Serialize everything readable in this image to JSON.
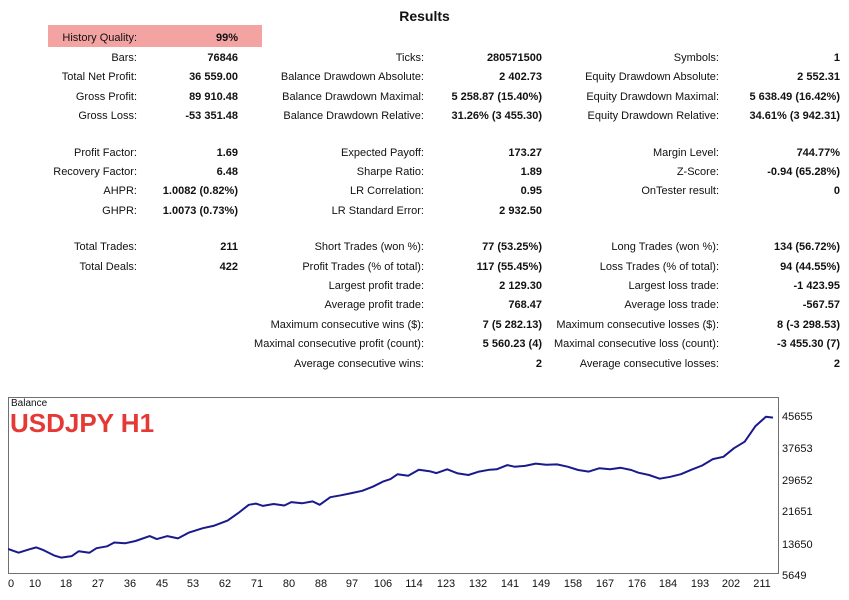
{
  "title": "Results",
  "history_quality": {
    "label": "History Quality:",
    "value": "99%"
  },
  "col1": [
    {
      "label": "Bars:",
      "value": "76846"
    },
    {
      "label": "Total Net Profit:",
      "value": "36 559.00"
    },
    {
      "label": "Gross Profit:",
      "value": "89 910.48"
    },
    {
      "label": "Gross Loss:",
      "value": "-53 351.48"
    },
    {
      "label": "Profit Factor:",
      "value": "1.69"
    },
    {
      "label": "Recovery Factor:",
      "value": "6.48"
    },
    {
      "label": "AHPR:",
      "value": "1.0082 (0.82%)"
    },
    {
      "label": "GHPR:",
      "value": "1.0073 (0.73%)"
    },
    {
      "label": "Total Trades:",
      "value": "211"
    },
    {
      "label": "Total Deals:",
      "value": "422"
    }
  ],
  "col2": [
    {
      "label": "Ticks:",
      "value": "280571500"
    },
    {
      "label": "Balance Drawdown Absolute:",
      "value": "2 402.73"
    },
    {
      "label": "Balance Drawdown Maximal:",
      "value": "5 258.87 (15.40%)"
    },
    {
      "label": "Balance Drawdown Relative:",
      "value": "31.26% (3 455.30)"
    },
    {
      "label": "Expected Payoff:",
      "value": "173.27"
    },
    {
      "label": "Sharpe Ratio:",
      "value": "1.89"
    },
    {
      "label": "LR Correlation:",
      "value": "0.95"
    },
    {
      "label": "LR Standard Error:",
      "value": "2 932.50"
    },
    {
      "label": "Short Trades (won %):",
      "value": "77 (53.25%)"
    },
    {
      "label": "Profit Trades (% of total):",
      "value": "117 (55.45%)"
    },
    {
      "label": "Largest profit trade:",
      "value": "2 129.30"
    },
    {
      "label": "Average profit trade:",
      "value": "768.47"
    },
    {
      "label": "Maximum consecutive wins ($):",
      "value": "7 (5 282.13)"
    },
    {
      "label": "Maximal consecutive profit (count):",
      "value": "5 560.23 (4)"
    },
    {
      "label": "Average consecutive wins:",
      "value": "2"
    }
  ],
  "col3": [
    {
      "label": "Symbols:",
      "value": "1"
    },
    {
      "label": "Equity Drawdown Absolute:",
      "value": "2 552.31"
    },
    {
      "label": "Equity Drawdown Maximal:",
      "value": "5 638.49 (16.42%)"
    },
    {
      "label": "Equity Drawdown Relative:",
      "value": "34.61% (3 942.31)"
    },
    {
      "label": "Margin Level:",
      "value": "744.77%"
    },
    {
      "label": "Z-Score:",
      "value": "-0.94 (65.28%)"
    },
    {
      "label": "OnTester result:",
      "value": "0"
    },
    {
      "label": "Long Trades (won %):",
      "value": "134 (56.72%)"
    },
    {
      "label": "Loss Trades (% of total):",
      "value": "94 (44.55%)"
    },
    {
      "label": "Largest loss trade:",
      "value": "-1 423.95"
    },
    {
      "label": "Average loss trade:",
      "value": "-567.57"
    },
    {
      "label": "Maximum consecutive losses ($):",
      "value": "8 (-3 298.53)"
    },
    {
      "label": "Maximal consecutive loss (count):",
      "value": "-3 455.30 (7)"
    },
    {
      "label": "Average consecutive losses:",
      "value": "2"
    }
  ],
  "chart_data": {
    "type": "line",
    "label": "Balance",
    "subtitle": "USDJPY H1",
    "x_ticks": [
      "0",
      "10",
      "18",
      "27",
      "36",
      "45",
      "53",
      "62",
      "71",
      "80",
      "88",
      "97",
      "106",
      "114",
      "123",
      "132",
      "141",
      "149",
      "158",
      "167",
      "176",
      "184",
      "193",
      "202",
      "211"
    ],
    "y_ticks": [
      "45655",
      "37653",
      "29652",
      "21651",
      "13650",
      "5649"
    ],
    "ylim": [
      5649,
      45655
    ],
    "xlim": [
      0,
      216
    ],
    "line_color": "#1a1a8c",
    "series": [
      {
        "x": [
          0,
          3,
          6,
          8,
          10,
          13,
          15,
          18,
          20,
          23,
          25,
          28,
          30,
          33,
          36,
          40,
          42,
          45,
          48,
          51,
          55,
          58,
          62,
          65,
          68,
          70,
          72,
          75,
          78,
          80,
          83,
          86,
          88,
          91,
          94,
          97,
          100,
          103,
          106,
          108,
          110,
          113,
          116,
          119,
          121,
          124,
          127,
          130,
          133,
          136,
          138,
          141,
          143,
          146,
          149,
          152,
          155,
          158,
          161,
          164,
          167,
          170,
          173,
          176,
          178,
          181,
          184,
          187,
          190,
          193,
          196,
          199,
          202,
          205,
          208,
          211,
          214,
          216
        ],
        "y": [
          10700,
          9700,
          10600,
          11100,
          10400,
          9000,
          8400,
          8800,
          10100,
          9700,
          10900,
          11400,
          12400,
          12200,
          12800,
          14100,
          13300,
          14100,
          13500,
          15000,
          16200,
          16800,
          18200,
          20200,
          22400,
          22700,
          22100,
          22600,
          22200,
          23100,
          22800,
          23300,
          22400,
          24400,
          24900,
          25500,
          26100,
          27200,
          28600,
          29200,
          30500,
          30100,
          31700,
          31300,
          30800,
          31800,
          30700,
          30300,
          31200,
          31700,
          31800,
          32900,
          32500,
          32700,
          33300,
          33000,
          33100,
          32500,
          31600,
          31200,
          32100,
          31800,
          32200,
          31600,
          30900,
          30300,
          29300,
          29800,
          30500,
          31700,
          32800,
          34500,
          35100,
          37400,
          39100,
          43200,
          45700,
          45500
        ]
      }
    ]
  }
}
